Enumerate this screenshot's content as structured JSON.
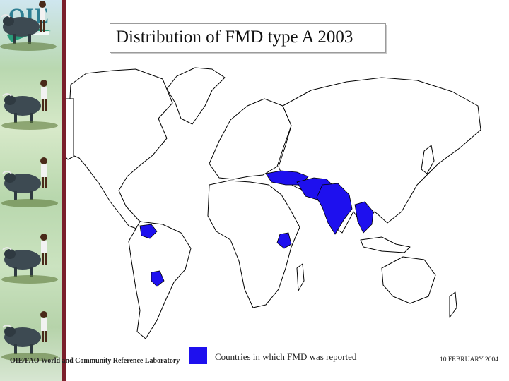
{
  "header": {
    "logo_text": "OIE",
    "title": "Distribution of FMD type A 2003"
  },
  "legend": {
    "label": "Countries in which FMD was reported",
    "color": "#1e10ee"
  },
  "footer": {
    "lab_text": "OIE/FAO World and Community Reference Laboratory",
    "date": "10 FEBRUARY 2004"
  },
  "colors": {
    "sidebar_rule": "#7a1f2b",
    "reported": "#1e10ee",
    "land": "#ffffff",
    "border": "#000000"
  },
  "sidebar": {
    "image": "repeated photo of a farmer with water buffalo"
  }
}
